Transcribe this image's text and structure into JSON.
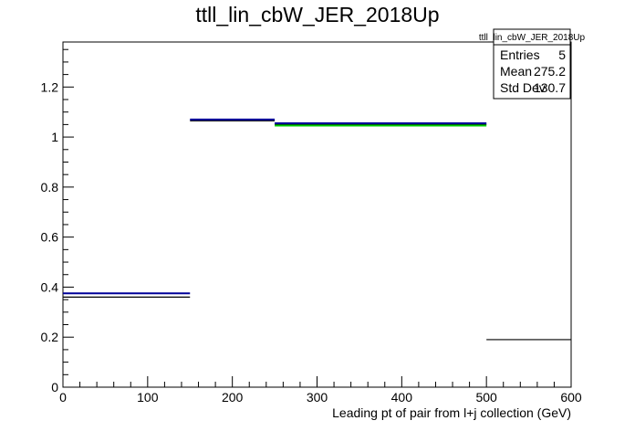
{
  "chart_data": {
    "type": "histogram",
    "title": "ttll_lin_cbW_JER_2018Up",
    "xlabel": "Leading pt of pair from l+j collection (GeV)",
    "ylabel": "",
    "xlim": [
      0,
      600
    ],
    "ylim": [
      0,
      1.38
    ],
    "x_ticks": [
      0,
      100,
      200,
      300,
      400,
      500,
      600
    ],
    "y_ticks": [
      0,
      0.2,
      0.4,
      0.6,
      0.8,
      1,
      1.2
    ],
    "x_tick_labels": [
      "0",
      "100",
      "200",
      "300",
      "400",
      "500",
      "600"
    ],
    "y_tick_labels": [
      "0",
      "0.2",
      "0.4",
      "0.6",
      "0.8",
      "1",
      "1.2"
    ],
    "grid": false,
    "legend": "none",
    "series": [
      {
        "color": "#000000",
        "bins": [
          {
            "x0": 0,
            "x1": 150,
            "y": 0.36
          },
          {
            "x0": 150,
            "x1": 250,
            "y": 1.065
          },
          {
            "x0": 250,
            "x1": 500,
            "y": 1.05
          },
          {
            "x0": 500,
            "x1": 600,
            "y": 0.19
          }
        ]
      },
      {
        "color": "#00cc00",
        "bins": [
          {
            "x0": 250,
            "x1": 500,
            "y": 1.046
          }
        ]
      },
      {
        "color": "#000099",
        "bins": [
          {
            "x0": 0,
            "x1": 150,
            "y": 0.375
          },
          {
            "x0": 150,
            "x1": 250,
            "y": 1.07
          },
          {
            "x0": 250,
            "x1": 500,
            "y": 1.055
          }
        ]
      }
    ],
    "stats_box": {
      "title": "ttll_lin_cbW_JER_2018Up",
      "rows": [
        {
          "label": "Entries",
          "value": "5"
        },
        {
          "label": "Mean",
          "value": "275.2"
        },
        {
          "label": "Std Dev",
          "value": "130.7"
        }
      ]
    }
  }
}
